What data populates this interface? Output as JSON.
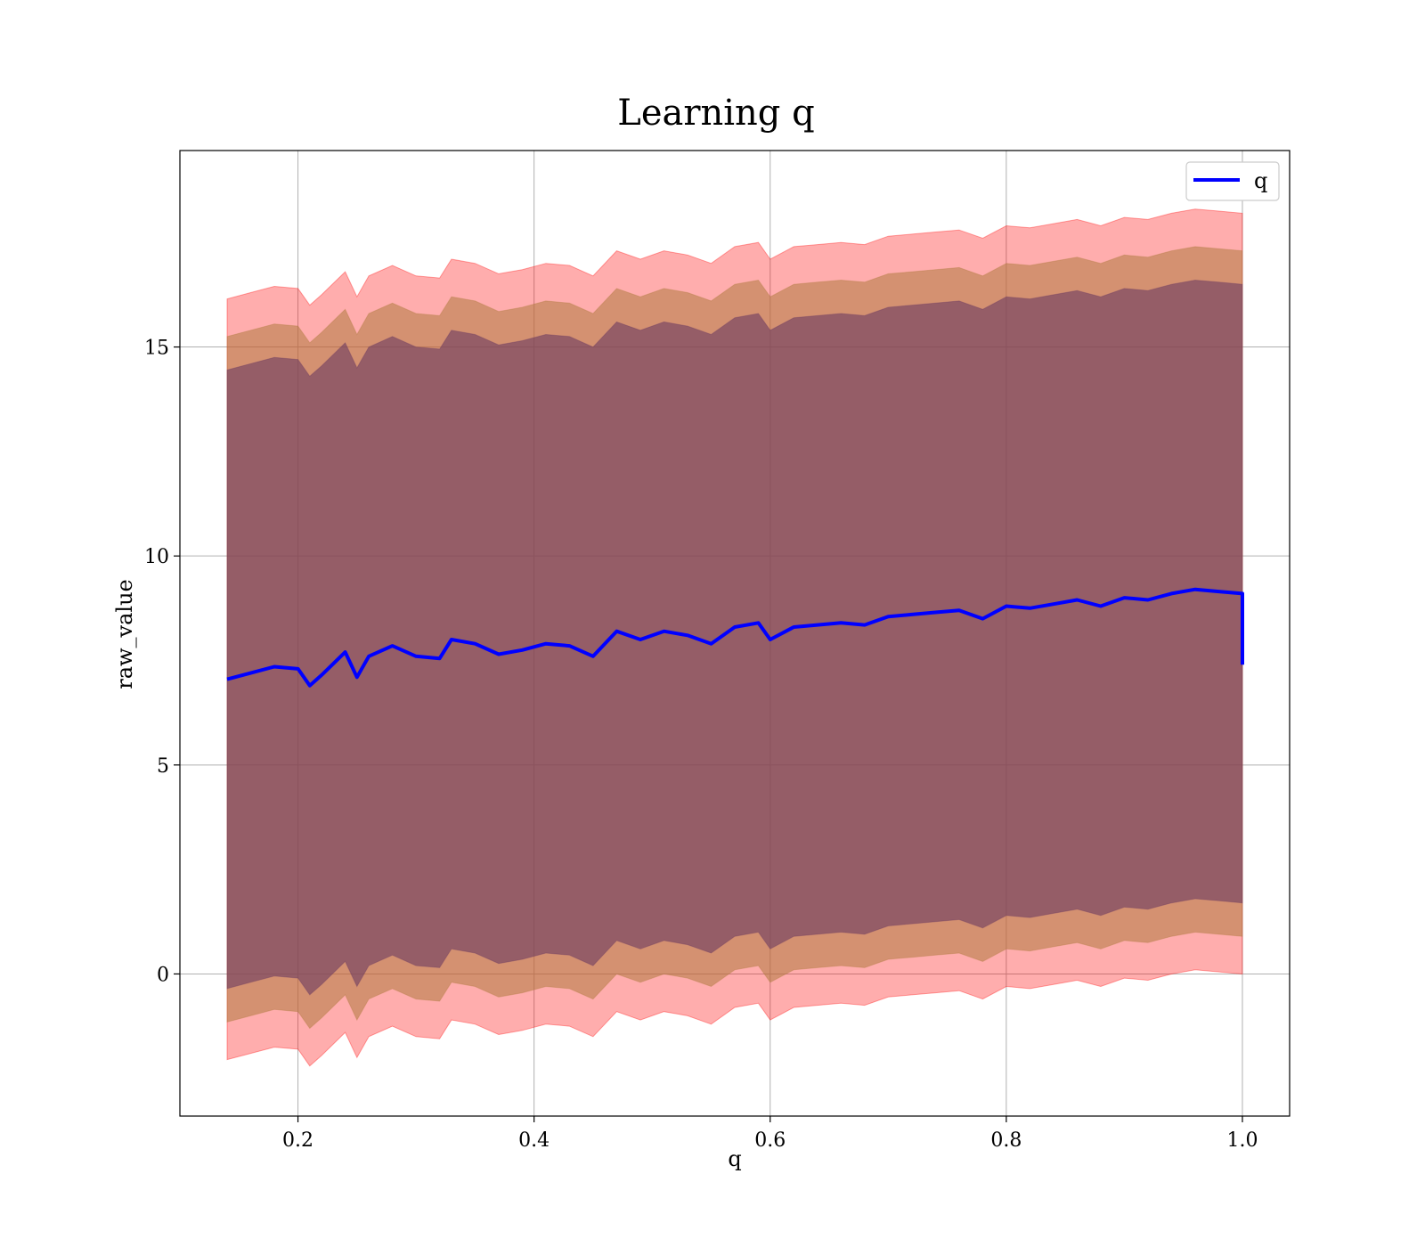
{
  "chart_data": {
    "type": "area",
    "title": "Learning q",
    "xlabel": "q",
    "ylabel": "raw_value",
    "xlim": [
      0.1,
      1.04
    ],
    "ylim": [
      -3.4,
      19.7
    ],
    "xticks": [
      0.2,
      0.4,
      0.6,
      0.8,
      1.0
    ],
    "xtick_labels": [
      "0.2",
      "0.4",
      "0.6",
      "0.8",
      "1.0"
    ],
    "yticks": [
      0,
      5,
      10,
      15
    ],
    "ytick_labels": [
      "0",
      "5",
      "10",
      "15"
    ],
    "grid": true,
    "legend": {
      "position": "top-right",
      "entries": [
        "q"
      ]
    },
    "colors": {
      "mean_line": "#0000ff",
      "band_outer": "#ff0000",
      "band_middle": "#b07a40",
      "band_inner": "#6a3a60",
      "grid": "#b0b0b0"
    },
    "series": [
      {
        "name": "q",
        "x": [
          0.14,
          0.16,
          0.18,
          0.2,
          0.21,
          0.22,
          0.24,
          0.25,
          0.26,
          0.28,
          0.3,
          0.32,
          0.33,
          0.35,
          0.37,
          0.39,
          0.41,
          0.43,
          0.45,
          0.47,
          0.49,
          0.51,
          0.53,
          0.55,
          0.57,
          0.59,
          0.6,
          0.62,
          0.64,
          0.66,
          0.68,
          0.7,
          0.72,
          0.74,
          0.76,
          0.78,
          0.8,
          0.82,
          0.84,
          0.86,
          0.88,
          0.9,
          0.92,
          0.94,
          0.96,
          0.98,
          1.0
        ],
        "values": [
          7.05,
          7.2,
          7.35,
          7.3,
          6.9,
          7.15,
          7.7,
          7.1,
          7.6,
          7.85,
          7.6,
          7.55,
          8.0,
          7.9,
          7.65,
          7.75,
          7.9,
          7.85,
          7.6,
          8.2,
          8.0,
          8.2,
          8.1,
          7.9,
          8.3,
          8.4,
          8.0,
          8.3,
          8.35,
          8.4,
          8.35,
          8.55,
          8.6,
          8.65,
          8.7,
          8.5,
          8.8,
          8.75,
          8.85,
          8.95,
          8.8,
          9.0,
          8.95,
          9.1,
          9.2,
          9.15,
          9.1
        ],
        "final_drop": 7.4,
        "bands": [
          {
            "level": "outer",
            "half_width": 9.1
          },
          {
            "level": "middle",
            "half_width": 8.2
          },
          {
            "level": "inner",
            "half_width": 7.4
          }
        ]
      }
    ]
  }
}
